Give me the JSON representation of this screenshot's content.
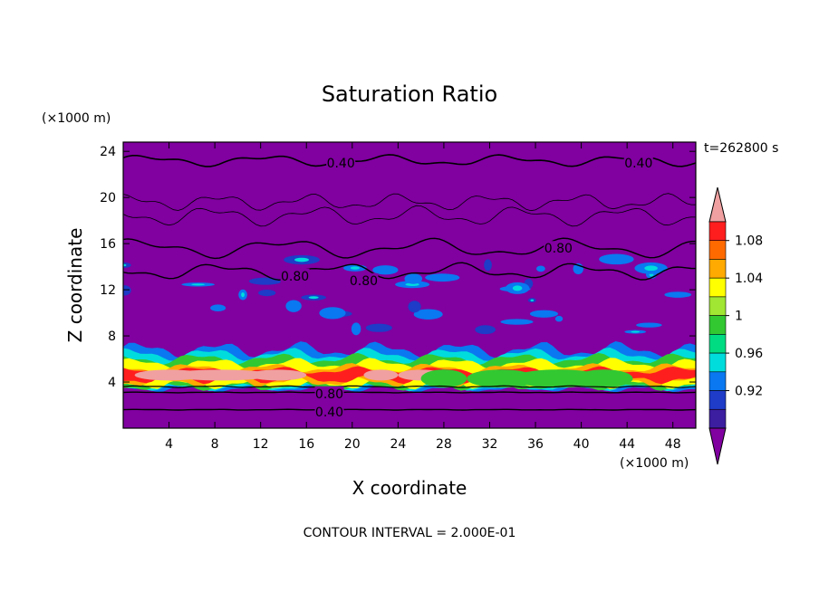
{
  "chart_data": {
    "type": "heatmap",
    "title": "Saturation Ratio",
    "xlabel": "X coordinate",
    "ylabel": "Z coordinate",
    "x_unit": "(×1000 m)",
    "z_unit": "(×1000 m)",
    "time_label": "t=262800 s",
    "footer": "CONTOUR INTERVAL = 2.000E-01",
    "xlim": [
      0,
      50
    ],
    "ylim": [
      0,
      24.8
    ],
    "x_ticks": [
      "4",
      "8",
      "12",
      "16",
      "20",
      "24",
      "28",
      "32",
      "36",
      "40",
      "44",
      "48"
    ],
    "y_ticks": [
      "4",
      "8",
      "12",
      "16",
      "20",
      "24"
    ],
    "colorbar": {
      "labels": [
        "1.08",
        "1.04",
        "1",
        "0.96",
        "0.92"
      ],
      "levels": [
        0.9,
        0.92,
        0.94,
        0.96,
        0.98,
        1.0,
        1.02,
        1.04,
        1.06,
        1.08,
        1.1
      ],
      "colors": [
        "#8000a0",
        "#3c1ea0",
        "#1e3cc8",
        "#0a78f0",
        "#00dcdc",
        "#00dc82",
        "#32c832",
        "#a0e632",
        "#ffff00",
        "#ffaa00",
        "#ff6a00",
        "#ff1e1e",
        "#f0a0a0"
      ]
    },
    "contour_labels": [
      {
        "text": "0.40",
        "x": 19,
        "y": 23.0
      },
      {
        "text": "0.40",
        "x": 45,
        "y": 23.0
      },
      {
        "text": "0.80",
        "x": 38,
        "y": 15.6
      },
      {
        "text": "0.80",
        "x": 15,
        "y": 13.2
      },
      {
        "text": "0.80",
        "x": 21,
        "y": 12.8
      },
      {
        "text": "0.80",
        "x": 18,
        "y": 3.0
      },
      {
        "text": "0.40",
        "x": 18,
        "y": 1.4
      }
    ],
    "grid": false,
    "legend": "right"
  }
}
